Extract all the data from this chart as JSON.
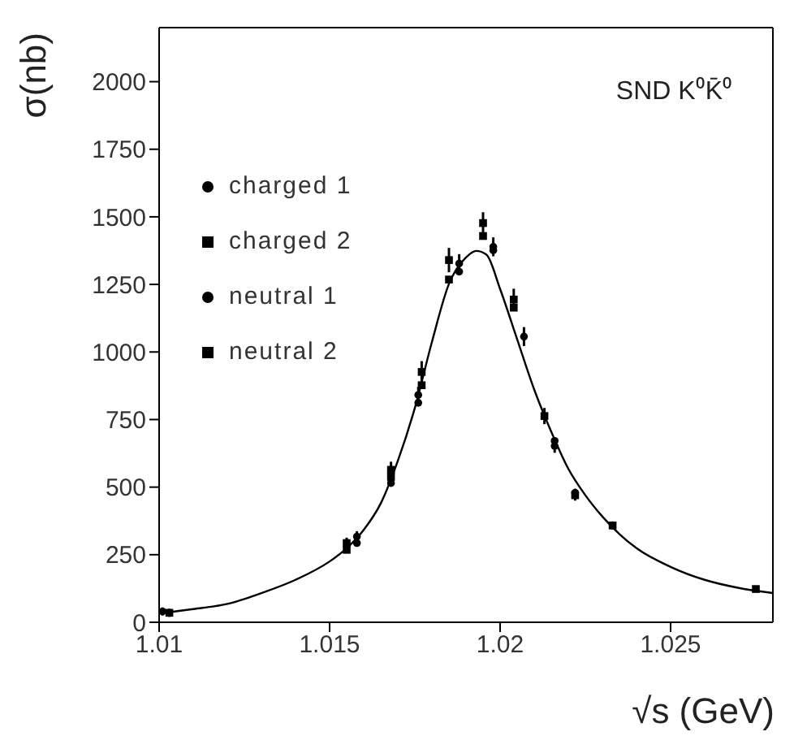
{
  "chart_data": {
    "type": "scatter",
    "title": "SND K⁰K̄⁰",
    "xlabel": "√s (GeV)",
    "ylabel": "σ(nb)",
    "xlim": [
      1.01,
      1.028
    ],
    "xticks": [
      1.01,
      1.015,
      1.02,
      1.025
    ],
    "ylim": [
      0,
      2200
    ],
    "yticks": [
      0,
      250,
      500,
      750,
      1000,
      1250,
      1500,
      1750,
      2000
    ],
    "grid": false,
    "legend": "top left",
    "series": [
      {
        "name": "charged 1",
        "color": "#000000",
        "marker": "circle",
        "x": [
          1.0101,
          1.0158,
          1.0176,
          1.0188,
          1.0198,
          1.0207,
          1.0216,
          1.0222
        ],
        "values": [
          40,
          317,
          841,
          1327,
          1389,
          1057,
          652,
          479
        ],
        "errors": [
          15,
          20,
          30,
          35,
          35,
          35,
          25,
          15
        ]
      },
      {
        "name": "charged 2",
        "color": "#000000",
        "marker": "square",
        "x": [
          1.0103,
          1.0155,
          1.0168,
          1.0177,
          1.0185,
          1.0195,
          1.0204,
          1.0213,
          1.0222,
          1.0233,
          1.0275
        ],
        "values": [
          35,
          293,
          564,
          926,
          1340,
          1477,
          1194,
          763,
          470,
          358,
          123
        ],
        "errors": [
          15,
          20,
          30,
          40,
          45,
          40,
          40,
          30,
          20,
          15,
          10
        ]
      },
      {
        "name": "neutral 1",
        "color": "#000000",
        "marker": "circle",
        "x": [
          1.0158,
          1.0168,
          1.0176,
          1.0188,
          1.0198,
          1.0216
        ],
        "values": [
          293,
          515,
          812,
          1297,
          1376,
          671
        ]
      },
      {
        "name": "neutral 2",
        "color": "#000000",
        "marker": "square",
        "x": [
          1.0155,
          1.0168,
          1.0177,
          1.0185,
          1.0195,
          1.0204
        ],
        "values": [
          268,
          538,
          877,
          1268,
          1429,
          1164
        ]
      },
      {
        "type": "line",
        "color": "#000000",
        "marker": "none",
        "x": [
          1.01,
          1.011,
          1.012,
          1.013,
          1.014,
          1.015,
          1.0155,
          1.016,
          1.0165,
          1.017,
          1.0175,
          1.018,
          1.0185,
          1.019,
          1.0193,
          1.0196,
          1.02,
          1.0205,
          1.021,
          1.0215,
          1.022,
          1.0225,
          1.023,
          1.024,
          1.025,
          1.026,
          1.027,
          1.028
        ],
        "values": [
          33,
          49,
          68,
          108,
          157,
          225,
          274,
          342,
          440,
          597,
          793,
          1037,
          1252,
          1350,
          1374,
          1360,
          1233,
          1047,
          861,
          705,
          568,
          470,
          391,
          274,
          205,
          157,
          127,
          108
        ]
      }
    ]
  }
}
